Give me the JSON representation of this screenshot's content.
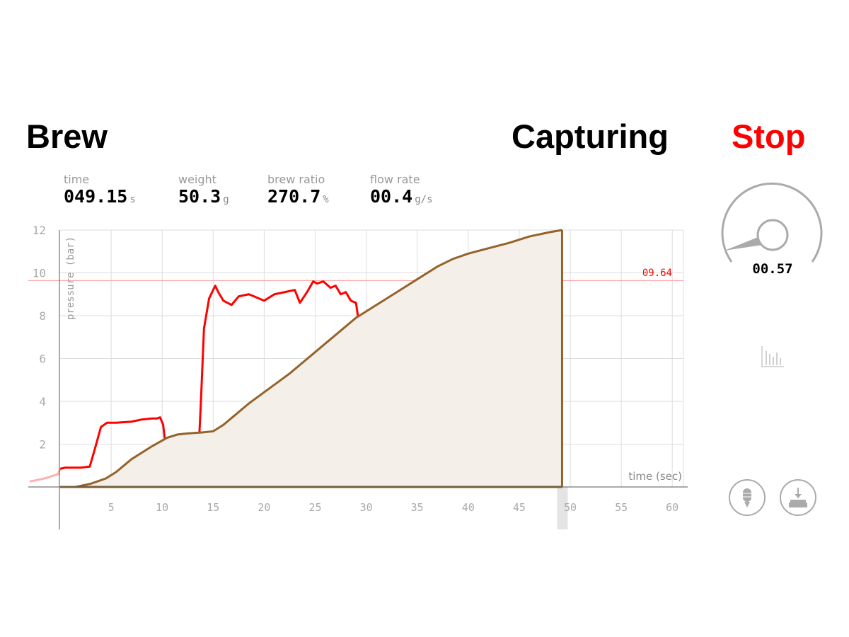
{
  "header": {
    "title": "Brew",
    "status": "Capturing",
    "stop_label": "Stop"
  },
  "stats": [
    {
      "label": "time",
      "value": "049.15",
      "unit": "s"
    },
    {
      "label": "weight",
      "value": "50.3",
      "unit": "g"
    },
    {
      "label": "brew ratio",
      "value": "270.7",
      "unit": "%"
    },
    {
      "label": "flow rate",
      "value": "00.4",
      "unit": "g/s"
    }
  ],
  "gauge": {
    "value": "00.57"
  },
  "icons": {
    "chart": "bar-chart-icon",
    "tamper": "tamper-icon",
    "tare": "scale-tare-icon"
  },
  "colors": {
    "pressure": "#ff0000",
    "weight": "#946329",
    "weight_fill": "#f5efe9",
    "stop": "#ff0000"
  },
  "chart_data": {
    "type": "line",
    "ylabel": "pressure (bar)",
    "xlabel": "time (sec)",
    "xlim": [
      0,
      61
    ],
    "ylim": [
      0,
      12
    ],
    "xticks": [
      5,
      10,
      15,
      20,
      25,
      30,
      35,
      40,
      45,
      50,
      55,
      60
    ],
    "yticks": [
      2,
      4,
      6,
      8,
      10,
      12
    ],
    "grid": true,
    "target_line": {
      "value": 9.64,
      "label": "09.64"
    },
    "current_time": 49.2,
    "series": [
      {
        "key": "pressure",
        "x": [
          -3,
          -1.5,
          -0.2,
          0,
          0.5,
          2,
          2.9,
          3.3,
          4,
          4.6,
          5.5,
          7,
          8,
          9,
          9.5,
          9.8,
          10.1,
          10.5,
          11,
          11.5,
          12,
          12.5,
          13,
          13.5,
          13.8,
          14.1,
          14.6,
          15.2,
          15.5,
          16,
          16.8,
          17.5,
          18.5,
          19.5,
          20,
          21,
          22,
          23,
          23.5,
          24.2,
          24.8,
          25.2,
          25.8,
          26.5,
          27,
          27.5,
          28,
          28.5,
          29,
          29.3,
          29.7,
          30.5,
          31,
          32,
          32.5,
          33.5,
          34.5,
          35,
          35.7,
          36.5,
          37.5,
          38.2,
          38.7,
          39.2,
          40,
          41,
          42.5,
          44,
          46,
          49
        ],
        "y": [
          0.25,
          0.4,
          0.6,
          0.85,
          0.9,
          0.9,
          0.95,
          1.6,
          2.8,
          3.0,
          3.0,
          3.05,
          3.15,
          3.2,
          3.2,
          3.25,
          2.9,
          1.2,
          0.5,
          0.3,
          0.7,
          0.9,
          0.9,
          1.0,
          4,
          7.4,
          8.8,
          9.4,
          9.1,
          8.7,
          8.5,
          8.9,
          9.0,
          8.8,
          8.7,
          9.0,
          9.1,
          9.2,
          8.6,
          9.1,
          9.6,
          9.5,
          9.6,
          9.3,
          9.4,
          9.0,
          9.1,
          8.7,
          8.6,
          7.6,
          7.4,
          7.5,
          7.2,
          7.5,
          7.3,
          7.4,
          7.6,
          7.5,
          7.3,
          7.3,
          7.2,
          6.5,
          5,
          3.2,
          2.0,
          1.3,
          0.9,
          0.75,
          0.7,
          0.65
        ]
      },
      {
        "key": "weight",
        "x": [
          0,
          1.5,
          3,
          4.5,
          5.5,
          7,
          9,
          10.5,
          11.5,
          12.5,
          14,
          15,
          16,
          17,
          18.5,
          20.5,
          22.5,
          24,
          26,
          27.5,
          29,
          31,
          33,
          35,
          37,
          38.5,
          40,
          42,
          44,
          46,
          48,
          49.2
        ],
        "y": [
          0,
          0,
          0.15,
          0.4,
          0.7,
          1.3,
          1.9,
          2.3,
          2.45,
          2.5,
          2.55,
          2.6,
          2.9,
          3.3,
          3.9,
          4.6,
          5.3,
          5.9,
          6.7,
          7.3,
          7.9,
          8.5,
          9.1,
          9.7,
          10.3,
          10.65,
          10.9,
          11.15,
          11.4,
          11.7,
          11.9,
          12.0
        ]
      }
    ]
  }
}
